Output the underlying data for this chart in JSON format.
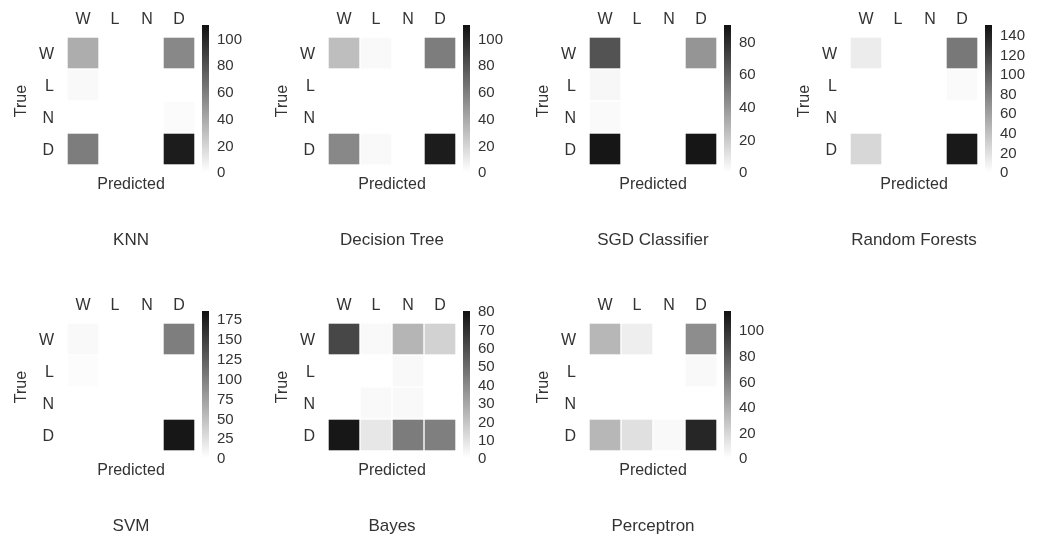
{
  "chart_data": [
    {
      "type": "heatmap",
      "title": "KNN",
      "xlabel": "Predicted",
      "ylabel": "True",
      "categories": [
        "W",
        "L",
        "N",
        "D"
      ],
      "y_categories": [
        "W",
        "L",
        "N",
        "D"
      ],
      "clim": [
        0,
        110
      ],
      "cticks": [
        0,
        20,
        40,
        60,
        80,
        100
      ],
      "cells": [
        [
          38,
          0,
          0,
          55
        ],
        [
          3,
          0,
          0,
          0
        ],
        [
          0,
          0,
          0,
          2
        ],
        [
          60,
          0,
          0,
          105
        ]
      ]
    },
    {
      "type": "heatmap",
      "title": "Decision Tree",
      "xlabel": "Predicted",
      "ylabel": "True",
      "categories": [
        "W",
        "L",
        "N",
        "D"
      ],
      "y_categories": [
        "W",
        "L",
        "N",
        "D"
      ],
      "clim": [
        0,
        110
      ],
      "cticks": [
        0,
        20,
        40,
        60,
        80,
        100
      ],
      "cells": [
        [
          30,
          3,
          0,
          60
        ],
        [
          0,
          0,
          0,
          0
        ],
        [
          0,
          0,
          0,
          0
        ],
        [
          55,
          3,
          0,
          105
        ]
      ]
    },
    {
      "type": "heatmap",
      "title": "SGD Classifier",
      "xlabel": "Predicted",
      "ylabel": "True",
      "categories": [
        "W",
        "L",
        "N",
        "D"
      ],
      "y_categories": [
        "W",
        "L",
        "N",
        "D"
      ],
      "clim": [
        0,
        90
      ],
      "cticks": [
        0,
        20,
        40,
        60,
        80
      ],
      "cells": [
        [
          65,
          0,
          0,
          40
        ],
        [
          3,
          0,
          0,
          0
        ],
        [
          2,
          0,
          0,
          0
        ],
        [
          88,
          0,
          0,
          88
        ]
      ]
    },
    {
      "type": "heatmap",
      "title": "Random Forests",
      "xlabel": "Predicted",
      "ylabel": "True",
      "categories": [
        "W",
        "L",
        "N",
        "D"
      ],
      "y_categories": [
        "W",
        "L",
        "N",
        "D"
      ],
      "clim": [
        0,
        150
      ],
      "cticks": [
        0,
        20,
        40,
        60,
        80,
        100,
        120,
        140
      ],
      "cells": [
        [
          12,
          0,
          0,
          85
        ],
        [
          0,
          0,
          0,
          3
        ],
        [
          0,
          0,
          0,
          0
        ],
        [
          25,
          0,
          0,
          145
        ]
      ]
    },
    {
      "type": "heatmap",
      "title": "SVM",
      "xlabel": "Predicted",
      "ylabel": "True",
      "categories": [
        "W",
        "L",
        "N",
        "D"
      ],
      "y_categories": [
        "W",
        "L",
        "N",
        "D"
      ],
      "clim": [
        0,
        185
      ],
      "cticks": [
        0,
        25,
        50,
        75,
        100,
        125,
        150,
        175
      ],
      "cells": [
        [
          5,
          0,
          0,
          100
        ],
        [
          2,
          0,
          0,
          0
        ],
        [
          0,
          0,
          0,
          0
        ],
        [
          0,
          0,
          0,
          180
        ]
      ]
    },
    {
      "type": "heatmap",
      "title": "Bayes",
      "xlabel": "Predicted",
      "ylabel": "True",
      "categories": [
        "W",
        "L",
        "N",
        "D"
      ],
      "y_categories": [
        "W",
        "L",
        "N",
        "D"
      ],
      "clim": [
        0,
        80
      ],
      "cticks": [
        0,
        10,
        20,
        30,
        40,
        50,
        60,
        70,
        80
      ],
      "cells": [
        [
          62,
          2,
          25,
          15
        ],
        [
          0,
          0,
          2,
          0
        ],
        [
          0,
          2,
          2,
          0
        ],
        [
          78,
          8,
          44,
          43
        ]
      ]
    },
    {
      "type": "heatmap",
      "title": "Perceptron",
      "xlabel": "Predicted",
      "ylabel": "True",
      "categories": [
        "W",
        "L",
        "N",
        "D"
      ],
      "y_categories": [
        "W",
        "L",
        "N",
        "D"
      ],
      "clim": [
        0,
        115
      ],
      "cticks": [
        0,
        20,
        40,
        60,
        80,
        100
      ],
      "cells": [
        [
          35,
          8,
          0,
          55
        ],
        [
          0,
          0,
          0,
          3
        ],
        [
          0,
          0,
          0,
          0
        ],
        [
          35,
          15,
          3,
          105
        ]
      ]
    }
  ]
}
